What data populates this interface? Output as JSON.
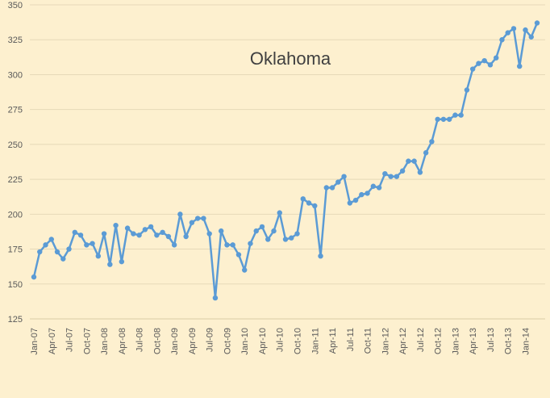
{
  "chart_data": {
    "type": "line",
    "title": "Oklahoma",
    "categories": [
      "Jan-07",
      null,
      null,
      "Apr-07",
      null,
      null,
      "Jul-07",
      null,
      null,
      "Oct-07",
      null,
      null,
      "Jan-08",
      null,
      null,
      "Apr-08",
      null,
      null,
      "Jul-08",
      null,
      null,
      "Oct-08",
      null,
      null,
      "Jan-09",
      null,
      null,
      "Apr-09",
      null,
      null,
      "Jul-09",
      null,
      null,
      "Oct-09",
      null,
      null,
      "Jan-10",
      null,
      null,
      "Apr-10",
      null,
      null,
      "Jul-10",
      null,
      null,
      "Oct-10",
      null,
      null,
      "Jan-11",
      null,
      null,
      "Apr-11",
      null,
      null,
      "Jul-11",
      null,
      null,
      "Oct-11",
      null,
      null,
      "Jan-12",
      null,
      null,
      "Apr-12",
      null,
      null,
      "Jul-12",
      null,
      null,
      "Oct-12",
      null,
      null,
      "Jan-13",
      null,
      null,
      "Apr-13",
      null,
      null,
      "Jul-13",
      null,
      null,
      "Oct-13",
      null,
      null,
      "Jan-14",
      null,
      null
    ],
    "values": [
      155,
      173,
      178,
      182,
      173,
      168,
      175,
      187,
      185,
      178,
      179,
      170,
      186,
      164,
      192,
      166,
      190,
      186,
      185,
      189,
      191,
      185,
      187,
      184,
      178,
      200,
      184,
      194,
      197,
      197,
      186,
      140,
      188,
      178,
      178,
      171,
      160,
      179,
      188,
      191,
      182,
      188,
      201,
      182,
      183,
      186,
      211,
      208,
      206,
      170,
      219,
      219,
      223,
      227,
      208,
      210,
      214,
      215,
      220,
      219,
      229,
      227,
      227,
      231,
      238,
      238,
      230,
      244,
      252,
      268,
      268,
      268,
      271,
      271,
      289,
      304,
      308,
      310,
      307,
      312,
      325,
      330,
      333,
      306,
      332,
      327,
      337
    ],
    "color": "#5b9bd5",
    "ylim": [
      125,
      350
    ],
    "yticks": [
      125,
      150,
      175,
      200,
      225,
      250,
      275,
      300,
      325,
      350
    ],
    "grid": true
  }
}
